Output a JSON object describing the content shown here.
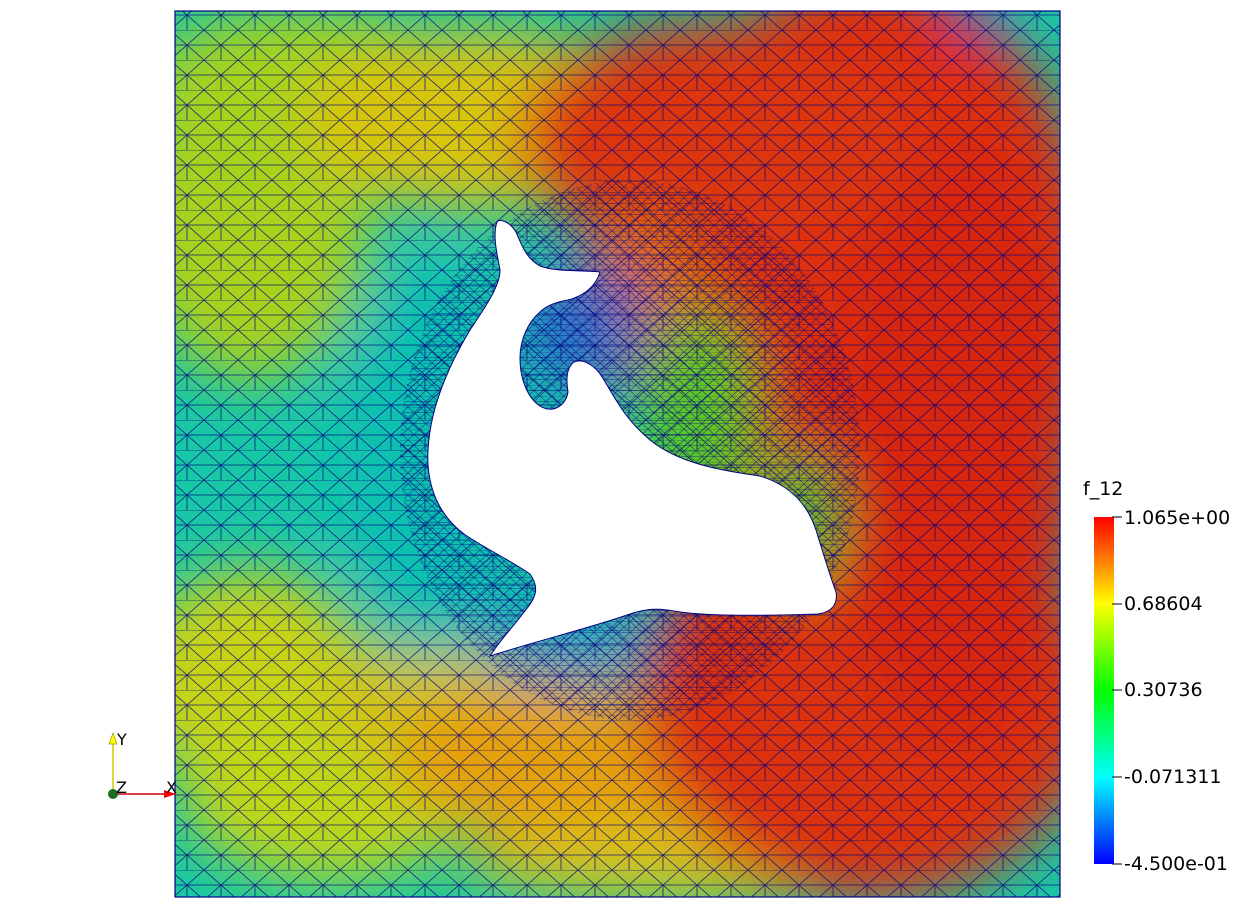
{
  "scalar_bar": {
    "title": "f_12",
    "labels": [
      "1.065e+00",
      "0.68604",
      "0.30736",
      "-0.071311",
      "-4.500e-01"
    ],
    "range": [
      -0.45,
      1.065
    ],
    "colormap": [
      "#0000ff",
      "#00ffff",
      "#00ff00",
      "#ffff00",
      "#ff0000"
    ]
  },
  "orientation_axes": {
    "x_label": "X",
    "y_label": "Y",
    "z_label": "Z",
    "x_color": "#ff0000",
    "y_color": "#ffff00",
    "z_color": "#007f00"
  },
  "mesh": {
    "edge_color": "#000080",
    "background": "#ffffff"
  }
}
